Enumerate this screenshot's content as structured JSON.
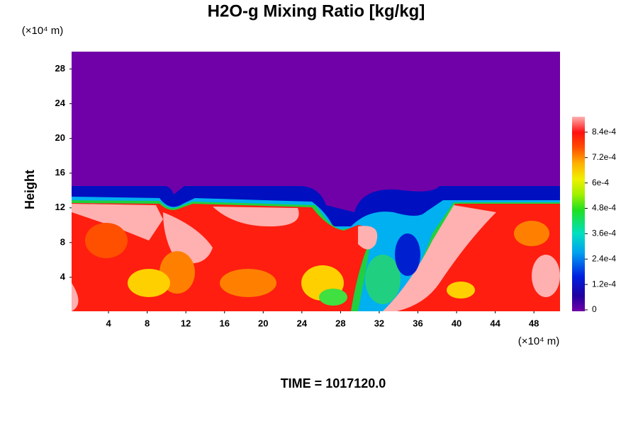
{
  "chart_data": {
    "type": "contour",
    "title": "H2O-g Mixing Ratio [kg/kg]",
    "y_unit": "(×10⁴ m)",
    "x_unit": "(×10⁴ m)",
    "ylabel": "Height",
    "footer": "TIME = 1017120.0",
    "xlim": [
      0,
      50.7
    ],
    "xticks": [
      4,
      8,
      12,
      16,
      20,
      24,
      28,
      32,
      36,
      40,
      44,
      48
    ],
    "ylim": [
      0,
      30
    ],
    "yticks": [
      4,
      8,
      12,
      16,
      20,
      24,
      28
    ],
    "colorbar": {
      "lim": [
        0,
        0.000913
      ],
      "ticks": [
        0,
        {
          "value": 0.00012,
          "label": "1.2e-4"
        },
        {
          "value": 0.00024,
          "label": "2.4e-4"
        },
        {
          "value": 0.00036,
          "label": "3.6e-4"
        },
        {
          "value": 0.00048,
          "label": "4.8e-4"
        },
        {
          "value": 0.0006,
          "label": "6e-4"
        },
        {
          "value": 0.00072,
          "label": "7.2e-4"
        },
        {
          "value": 0.00084,
          "label": "8.4e-4"
        }
      ]
    }
  }
}
